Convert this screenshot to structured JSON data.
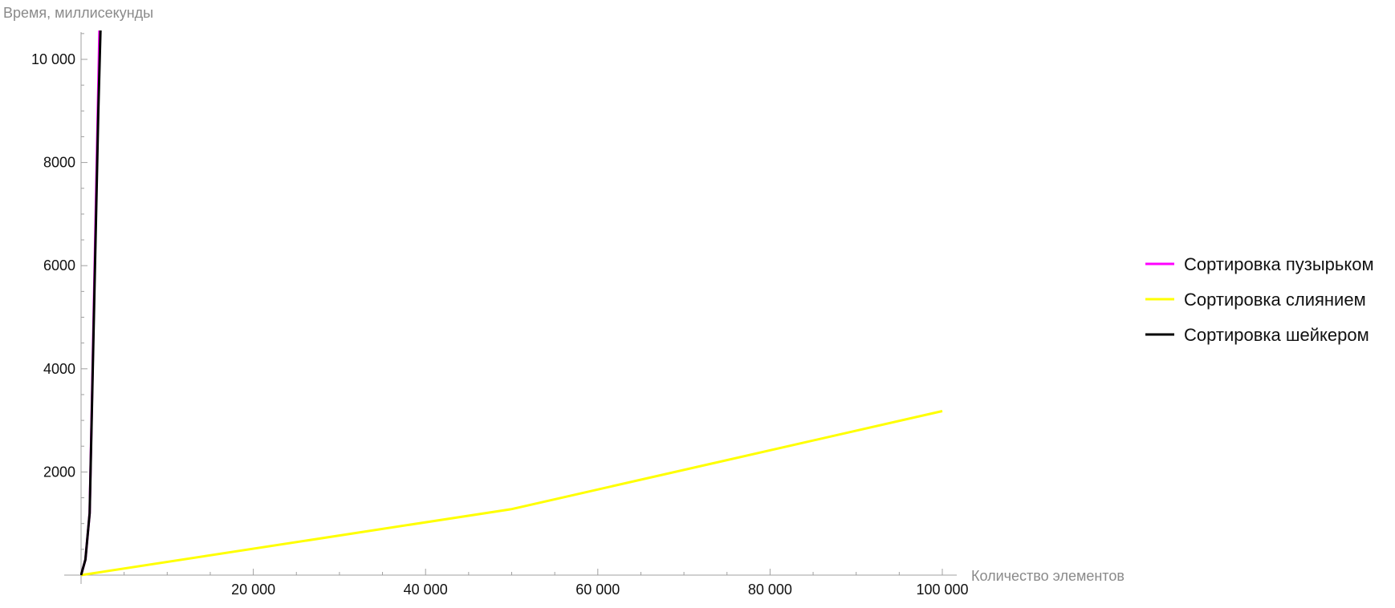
{
  "chart_data": {
    "type": "line",
    "xlabel": "Количество элементов",
    "ylabel": "Время, миллисекунды",
    "xlim": [
      0,
      102000
    ],
    "ylim": [
      0,
      10500
    ],
    "x_ticks": [
      {
        "value": 20000,
        "label": "20 000"
      },
      {
        "value": 40000,
        "label": "40 000"
      },
      {
        "value": 60000,
        "label": "60 000"
      },
      {
        "value": 80000,
        "label": "80 000"
      },
      {
        "value": 100000,
        "label": "100 000"
      }
    ],
    "y_ticks": [
      {
        "value": 2000,
        "label": "2000"
      },
      {
        "value": 4000,
        "label": "4000"
      },
      {
        "value": 6000,
        "label": "6000"
      },
      {
        "value": 8000,
        "label": "8000"
      },
      {
        "value": 10000,
        "label": "10 000"
      }
    ],
    "grid": false,
    "legend_position": "right",
    "series": [
      {
        "name": "Сортировка пузырьком",
        "color": "#ff00ff",
        "x": [
          0,
          500,
          1000,
          2000,
          2300
        ],
        "y": [
          0,
          300,
          1200,
          9500,
          12000
        ]
      },
      {
        "name": "Сортировка слиянием",
        "color": "#ffff00",
        "x": [
          0,
          50000,
          100000
        ],
        "y": [
          0,
          1280,
          3180
        ]
      },
      {
        "name": "Сортировка шейкером",
        "color": "#000000",
        "x": [
          0,
          500,
          1000,
          2000,
          2400
        ],
        "y": [
          0,
          300,
          1200,
          9000,
          11500
        ]
      }
    ]
  }
}
